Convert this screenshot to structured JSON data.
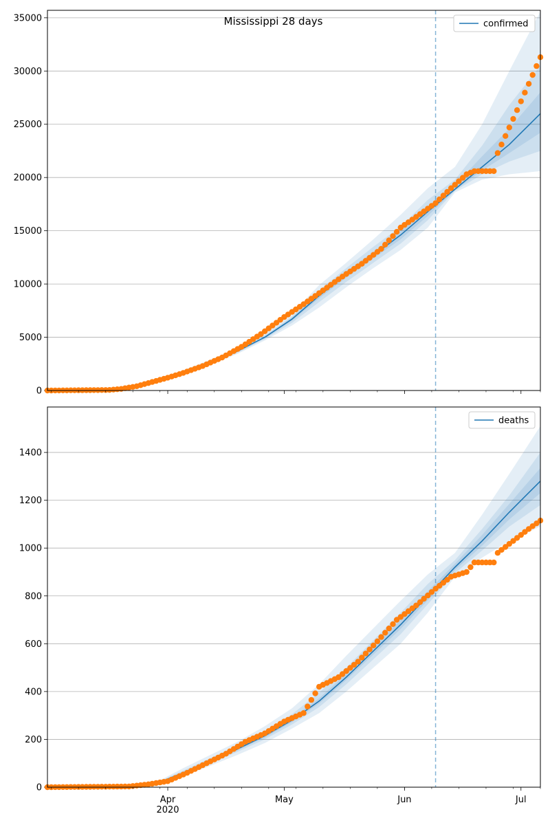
{
  "chart_data": [
    {
      "type": "line",
      "title": "Mississippi 28 days",
      "legend": {
        "label": "confirmed",
        "placement": "top-right"
      },
      "ylim": [
        0,
        35700
      ],
      "yticks": [
        0,
        5000,
        10000,
        15000,
        20000,
        25000,
        30000,
        35000
      ],
      "grid": true,
      "forecast_start": "2020-06-09",
      "model": {
        "dates": [
          "2020-03-01",
          "2020-03-15",
          "2020-03-22",
          "2020-03-29",
          "2020-04-05",
          "2020-04-12",
          "2020-04-19",
          "2020-04-26",
          "2020-05-03",
          "2020-05-10",
          "2020-05-17",
          "2020-05-24",
          "2020-05-31",
          "2020-06-07",
          "2020-06-14",
          "2020-06-21",
          "2020-06-28",
          "2020-07-06"
        ],
        "values": [
          0,
          50,
          300,
          900,
          1700,
          2650,
          3700,
          5000,
          6700,
          8900,
          10900,
          12700,
          14600,
          16800,
          18900,
          21000,
          23100,
          26000
        ],
        "bands": [
          {
            "lower": [
              0,
              50,
              300,
              800,
              1500,
              2400,
              3450,
              4700,
              6100,
              7800,
              9700,
              11500,
              13200,
              15300,
              18600,
              19800,
              20300,
              20600
            ],
            "upper": [
              0,
              50,
              300,
              1000,
              1900,
              2900,
              4000,
              5400,
              7200,
              9900,
              12000,
              14200,
              16500,
              19000,
              21000,
              25000,
              30000,
              35600
            ]
          },
          {
            "lower": [
              0,
              50,
              300,
              850,
              1600,
              2500,
              3550,
              4830,
              6350,
              8300,
              10200,
              12000,
              13800,
              16000,
              18750,
              20300,
              21500,
              22500
            ],
            "upper": [
              0,
              50,
              300,
              950,
              1800,
              2800,
              3850,
              5200,
              6950,
              9400,
              11500,
              13500,
              15400,
              17900,
              19800,
              23000,
              26800,
              30500
            ]
          },
          {
            "lower": [
              0,
              50,
              300,
              880,
              1650,
              2580,
              3630,
              4920,
              6550,
              8650,
              10600,
              12400,
              14200,
              16400,
              18820,
              20650,
              22300,
              24200
            ],
            "upper": [
              0,
              50,
              300,
              920,
              1750,
              2720,
              3770,
              5080,
              6850,
              9150,
              11200,
              13000,
              15000,
              17200,
              19300,
              22000,
              24600,
              28000
            ]
          }
        ]
      },
      "observed": {
        "dates": [
          "2020-03-01",
          "2020-03-17",
          "2020-03-20",
          "2020-03-24",
          "2020-03-28",
          "2020-04-01",
          "2020-04-05",
          "2020-04-10",
          "2020-04-15",
          "2020-04-20",
          "2020-04-25",
          "2020-05-01",
          "2020-05-06",
          "2020-05-11",
          "2020-05-16",
          "2020-05-21",
          "2020-05-26",
          "2020-05-31",
          "2020-06-04",
          "2020-06-09",
          "2020-06-13",
          "2020-06-17",
          "2020-06-19",
          "2020-06-24",
          "2020-06-25",
          "2020-06-29",
          "2020-07-03",
          "2020-07-06"
        ],
        "values": [
          0,
          50,
          150,
          400,
          800,
          1200,
          1650,
          2300,
          3100,
          4100,
          5300,
          6900,
          8100,
          9400,
          10700,
          11900,
          13300,
          15300,
          16300,
          17600,
          19000,
          20300,
          20600,
          20600,
          22300,
          25500,
          28800,
          31300
        ]
      },
      "xaxis": {
        "major_labels": [
          "Apr",
          "May",
          "Jun",
          "Jul"
        ],
        "year_label": "2020"
      }
    },
    {
      "type": "line",
      "legend": {
        "label": "deaths",
        "placement": "top-right"
      },
      "ylim": [
        0,
        1590
      ],
      "yticks": [
        0,
        200,
        400,
        600,
        800,
        1000,
        1200,
        1400
      ],
      "grid": true,
      "forecast_start": "2020-06-09",
      "model": {
        "dates": [
          "2020-03-01",
          "2020-03-22",
          "2020-03-29",
          "2020-04-05",
          "2020-04-12",
          "2020-04-19",
          "2020-04-26",
          "2020-05-03",
          "2020-05-10",
          "2020-05-17",
          "2020-05-24",
          "2020-05-31",
          "2020-06-07",
          "2020-06-14",
          "2020-06-21",
          "2020-06-28",
          "2020-07-06"
        ],
        "values": [
          0,
          5,
          15,
          60,
          110,
          160,
          215,
          280,
          360,
          460,
          570,
          680,
          800,
          920,
          1030,
          1150,
          1280
        ],
        "bands": [
          {
            "lower": [
              0,
              5,
              10,
              45,
              90,
              135,
              185,
              245,
              310,
              400,
              500,
              600,
              730,
              880,
              960,
              1030,
              1090
            ],
            "upper": [
              0,
              5,
              20,
              80,
              135,
              190,
              255,
              330,
              430,
              550,
              665,
              780,
              890,
              980,
              1140,
              1310,
              1510
            ]
          },
          {
            "lower": [
              0,
              5,
              12,
              50,
              100,
              148,
              200,
              262,
              335,
              430,
              535,
              640,
              765,
              895,
              990,
              1090,
              1180
            ],
            "upper": [
              0,
              5,
              18,
              70,
              122,
              174,
              235,
              305,
              395,
              500,
              615,
              730,
              850,
              950,
              1080,
              1220,
              1400
            ]
          },
          {
            "lower": [
              0,
              5,
              13,
              55,
              105,
              155,
              208,
              272,
              350,
              448,
              555,
              662,
              782,
              908,
              1010,
              1120,
              1230
            ],
            "upper": [
              0,
              5,
              17,
              65,
              115,
              165,
              222,
              290,
              372,
              475,
              588,
              700,
              820,
              935,
              1055,
              1185,
              1335
            ]
          }
        ]
      },
      "observed": {
        "dates": [
          "2020-03-01",
          "2020-03-22",
          "2020-03-27",
          "2020-04-01",
          "2020-04-06",
          "2020-04-11",
          "2020-04-16",
          "2020-04-21",
          "2020-04-26",
          "2020-05-01",
          "2020-05-06",
          "2020-05-10",
          "2020-05-15",
          "2020-05-20",
          "2020-05-25",
          "2020-05-30",
          "2020-06-04",
          "2020-06-09",
          "2020-06-13",
          "2020-06-17",
          "2020-06-19",
          "2020-06-24",
          "2020-06-25",
          "2020-06-29",
          "2020-07-03",
          "2020-07-06"
        ],
        "values": [
          0,
          3,
          12,
          25,
          60,
          100,
          140,
          190,
          225,
          275,
          310,
          420,
          460,
          525,
          610,
          700,
          760,
          830,
          880,
          900,
          940,
          940,
          980,
          1030,
          1080,
          1115
        ]
      },
      "xaxis": {
        "major_labels": [
          "Apr",
          "May",
          "Jun",
          "Jul"
        ],
        "year_label": "2020"
      }
    }
  ]
}
